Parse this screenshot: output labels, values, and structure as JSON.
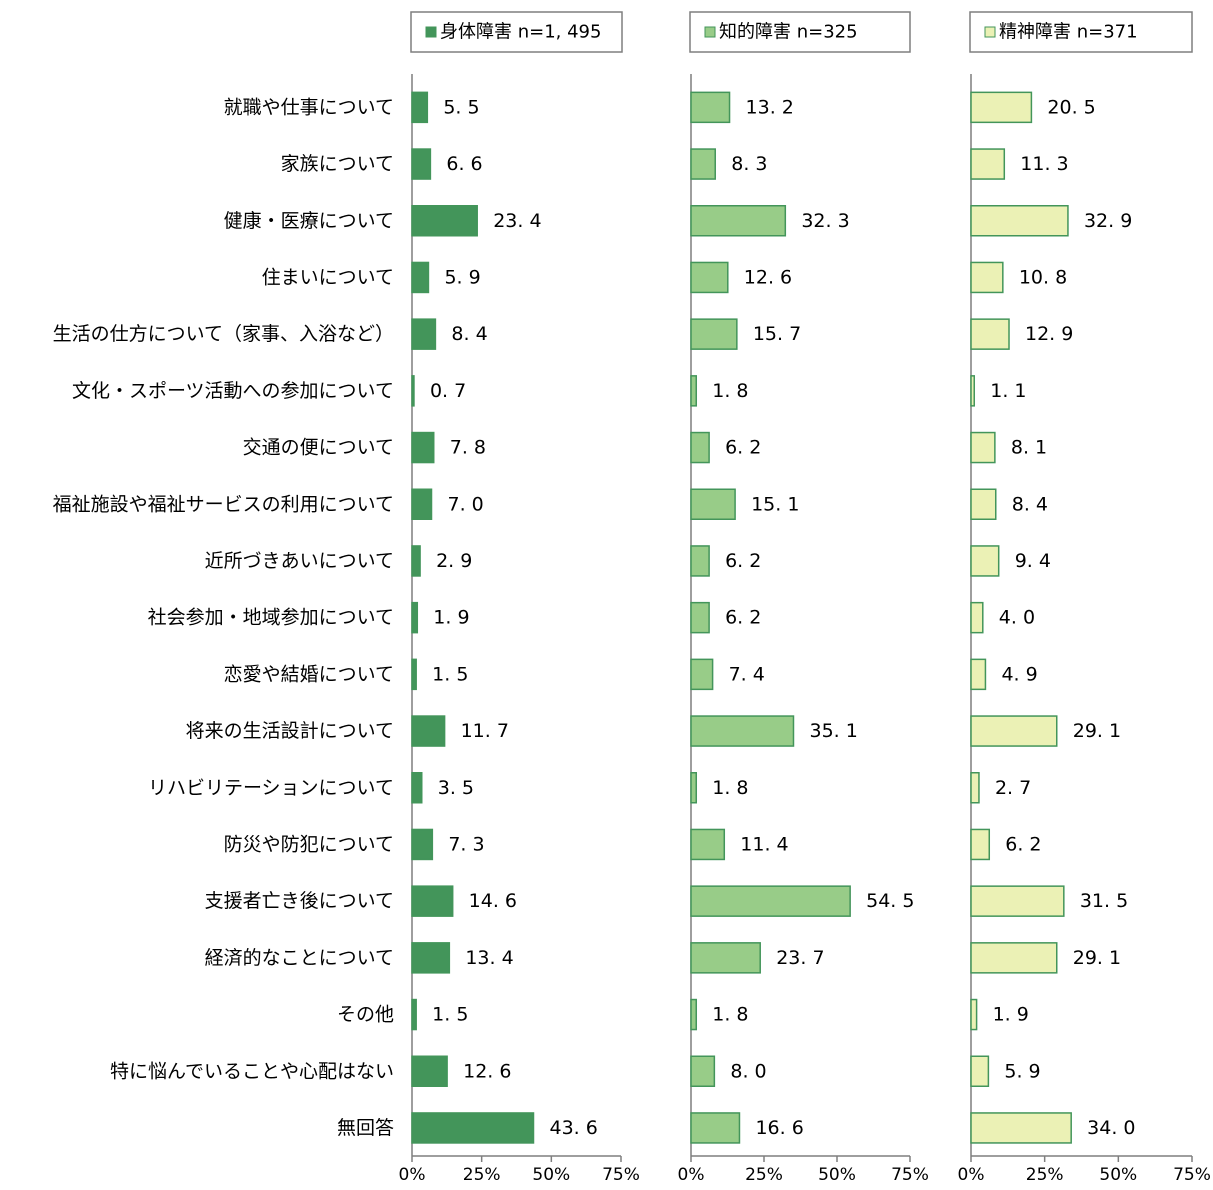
{
  "chart_data": {
    "type": "bar",
    "orientation": "horizontal",
    "categories": [
      "就職や仕事について",
      "家族について",
      "健康・医療について",
      "住まいについて",
      "生活の仕方について（家事、入浴など）",
      "文化・スポーツ活動への参加について",
      "交通の便について",
      "福祉施設や福祉サービスの利用について",
      "近所づきあいについて",
      "社会参加・地域参加について",
      "恋愛や結婚について",
      "将来の生活設計について",
      "リハビリテーションについて",
      "防災や防犯について",
      "支援者亡き後について",
      "経済的なことについて",
      "その他",
      "特に悩んでいることや心配はない",
      "無回答"
    ],
    "x_ticks": [
      "0%",
      "25%",
      "50%",
      "75%"
    ],
    "xlim": [
      0,
      75
    ],
    "grid": false,
    "series": [
      {
        "name": "身体障害 n=1, 495",
        "fill": "#43955a",
        "stroke": "#43955a",
        "values": [
          5.5,
          6.6,
          23.4,
          5.9,
          8.4,
          0.7,
          7.8,
          7.0,
          2.9,
          1.9,
          1.5,
          11.7,
          3.5,
          7.3,
          14.6,
          13.4,
          1.5,
          12.6,
          43.6
        ],
        "labels": [
          "5. 5",
          "6. 6",
          "23. 4",
          "5. 9",
          "8. 4",
          "0. 7",
          "7. 8",
          "7. 0",
          "2. 9",
          "1. 9",
          "1. 5",
          "11. 7",
          "3. 5",
          "7. 3",
          "14. 6",
          "13. 4",
          "1. 5",
          "12. 6",
          "43. 6"
        ]
      },
      {
        "name": "知的障害 n=325",
        "fill": "#98cc88",
        "stroke": "#43955a",
        "values": [
          13.2,
          8.3,
          32.3,
          12.6,
          15.7,
          1.8,
          6.2,
          15.1,
          6.2,
          6.2,
          7.4,
          35.1,
          1.8,
          11.4,
          54.5,
          23.7,
          1.8,
          8.0,
          16.6
        ],
        "labels": [
          "13. 2",
          "8. 3",
          "32. 3",
          "12. 6",
          "15. 7",
          "1. 8",
          "6. 2",
          "15. 1",
          "6. 2",
          "6. 2",
          "7. 4",
          "35. 1",
          "1. 8",
          "11. 4",
          "54. 5",
          "23. 7",
          "1. 8",
          "8. 0",
          "16. 6"
        ]
      },
      {
        "name": "精神障害 n=371",
        "fill": "#ebf1b5",
        "stroke": "#43955a",
        "values": [
          20.5,
          11.3,
          32.9,
          10.8,
          12.9,
          1.1,
          8.1,
          8.4,
          9.4,
          4.0,
          4.9,
          29.1,
          2.7,
          6.2,
          31.5,
          29.1,
          1.9,
          5.9,
          34.0
        ],
        "labels": [
          "20. 5",
          "11. 3",
          "32. 9",
          "10. 8",
          "12. 9",
          "1. 1",
          "8. 1",
          "8. 4",
          "9. 4",
          "4. 0",
          "4. 9",
          "29. 1",
          "2. 7",
          "6. 2",
          "31. 5",
          "29. 1",
          "1. 9",
          "5. 9",
          "34. 0"
        ]
      }
    ]
  }
}
